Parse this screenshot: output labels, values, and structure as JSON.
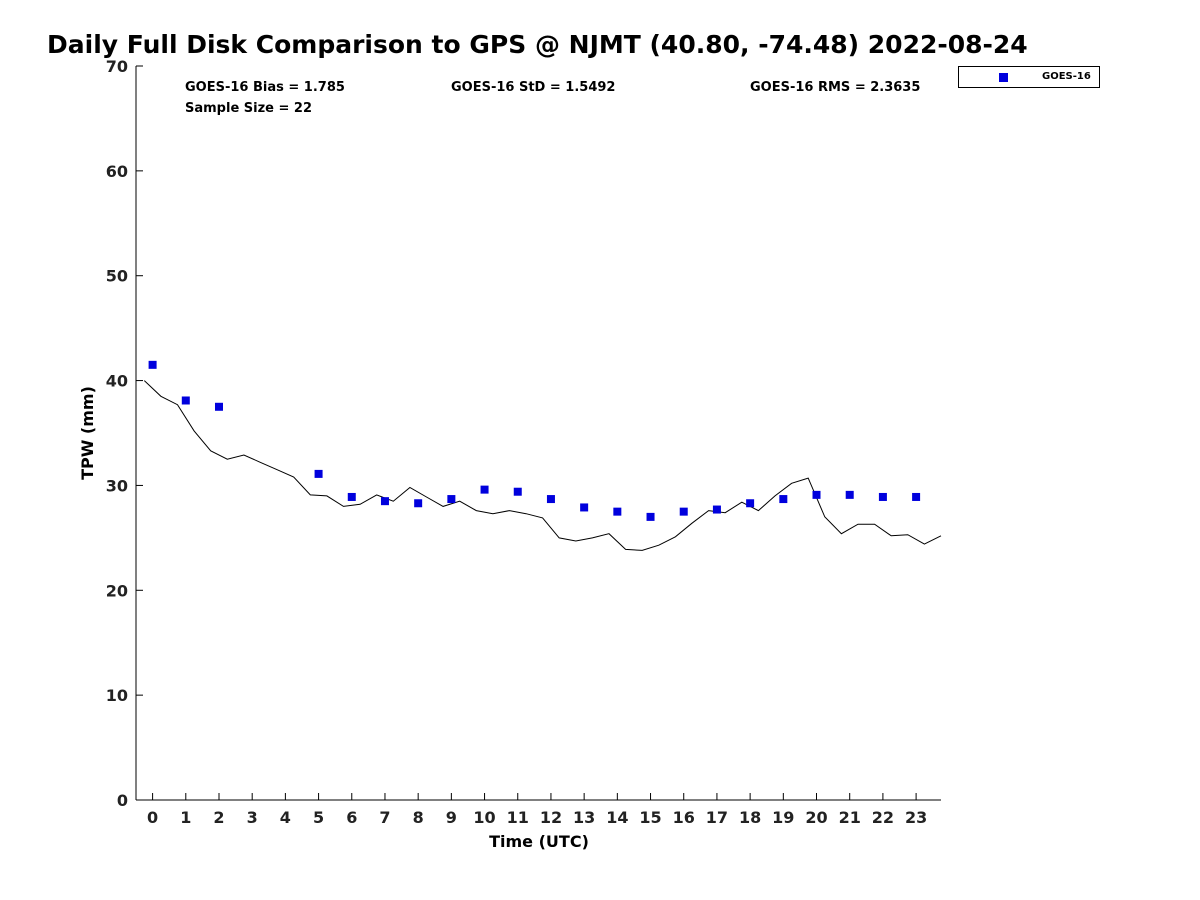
{
  "chart_data": {
    "type": "scatter",
    "title": "Daily Full Disk Comparison to GPS @ NJMT (40.80, -74.48) 2022-08-24",
    "xlabel": "Time (UTC)",
    "ylabel": "TPW (mm)",
    "xlim": [
      -0.5,
      23.75
    ],
    "ylim": [
      0,
      70
    ],
    "x_ticks": [
      0,
      1,
      2,
      3,
      4,
      5,
      6,
      7,
      8,
      9,
      10,
      11,
      12,
      13,
      14,
      15,
      16,
      17,
      18,
      19,
      20,
      21,
      22,
      23
    ],
    "y_ticks": [
      0,
      10,
      20,
      30,
      40,
      50,
      60,
      70
    ],
    "grid": false,
    "legend_position": "top-right-outside",
    "series": [
      {
        "name": "GOES-16",
        "kind": "scatter",
        "color": "#0000dd",
        "marker": "square",
        "x": [
          0,
          1,
          2,
          5,
          6,
          7,
          8,
          9,
          10,
          11,
          12,
          13,
          14,
          15,
          16,
          17,
          18,
          19,
          20,
          21,
          22,
          23
        ],
        "y": [
          41.5,
          38.1,
          37.5,
          31.1,
          28.9,
          28.5,
          28.3,
          28.7,
          29.6,
          29.4,
          28.7,
          27.9,
          27.5,
          27.0,
          27.5,
          27.7,
          28.3,
          28.7,
          29.1,
          29.1,
          28.9,
          28.9
        ]
      },
      {
        "kind": "line",
        "color": "#000000",
        "x": [
          -0.25,
          0.25,
          0.75,
          1.25,
          1.75,
          2.25,
          2.75,
          3.25,
          3.75,
          4.25,
          4.75,
          5.25,
          5.75,
          6.25,
          6.75,
          7.25,
          7.75,
          8.25,
          8.75,
          9.25,
          9.75,
          10.25,
          10.75,
          11.25,
          11.75,
          12.25,
          12.75,
          13.25,
          13.75,
          14.25,
          14.75,
          15.25,
          15.75,
          16.25,
          16.75,
          17.25,
          17.75,
          18.25,
          18.75,
          19.25,
          19.75,
          20.25,
          20.75,
          21.25,
          21.75,
          22.25,
          22.75,
          23.25,
          23.75
        ],
        "y": [
          40.0,
          38.5,
          37.7,
          35.2,
          33.3,
          32.5,
          32.9,
          32.2,
          31.5,
          30.8,
          29.1,
          29.0,
          28.0,
          28.2,
          29.1,
          28.5,
          29.8,
          28.9,
          28.0,
          28.5,
          27.6,
          27.3,
          27.6,
          27.3,
          26.9,
          25.0,
          24.7,
          25.0,
          25.4,
          23.9,
          23.8,
          24.3,
          25.1,
          26.4,
          27.6,
          27.4,
          28.4,
          27.6,
          29.0,
          30.2,
          30.7,
          27.0,
          25.4,
          26.3,
          26.3,
          25.2,
          25.3,
          24.4,
          25.2
        ]
      }
    ],
    "annotations": [
      "GOES-16 Bias = 1.785",
      "GOES-16 StD = 1.5492",
      "GOES-16 RMS = 2.3635",
      "Sample Size = 22"
    ]
  }
}
